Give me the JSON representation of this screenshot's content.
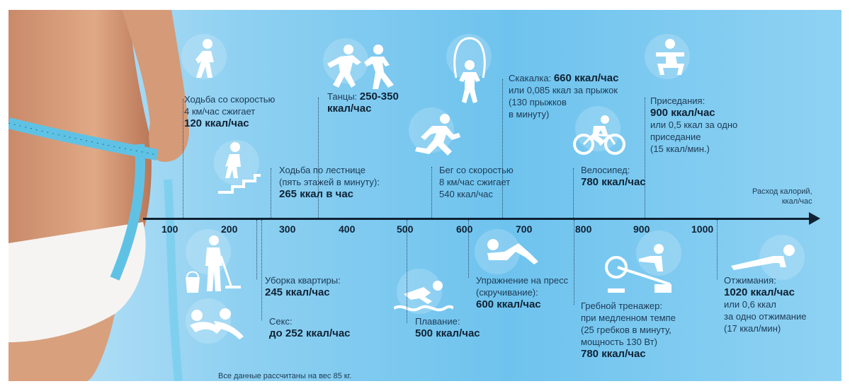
{
  "axis": {
    "label_line1": "Расход калорий,",
    "label_line2": "ккал/час",
    "ticks": [
      "100",
      "200",
      "300",
      "400",
      "500",
      "600",
      "700",
      "800",
      "900",
      "1000"
    ]
  },
  "footnote": "Все данные рассчитаны на вес 85 кг.",
  "activities": {
    "walking": {
      "line1": "Ходьба со скоростью",
      "line2": "4 км/час сжигает",
      "value": "120 ккал/час"
    },
    "dance": {
      "line1": "Танцы: ",
      "value_inline": "250-350",
      "line2": "ккал/час"
    },
    "rope": {
      "line1": "Скакалка: ",
      "value_inline": "660 ккал/час",
      "line2": "или 0,085 ккал за прыжок",
      "line3": "(130 прыжков",
      "line4": "в минуту)"
    },
    "squats": {
      "line1": "Приседания:",
      "value": "900 ккал/час",
      "line2": "или 0,5 ккал за одно",
      "line3": "приседание",
      "line4": "(15 ккал/мин.)"
    },
    "stairs": {
      "line1": "Ходьба по лестнице",
      "line2": "(пять этажей в минуту):",
      "value": "265 ккал в час"
    },
    "running": {
      "line1": "Бег со скоростью",
      "line2": "8 км/час сжигает",
      "line3": "540 ккал/час"
    },
    "bike": {
      "line1": "Велосипед:",
      "value": "780 ккал/час"
    },
    "cleaning": {
      "line1": "Уборка квартиры:",
      "value": "245 ккал/час"
    },
    "sex": {
      "line1": "Секс:",
      "value_prefix": "до ",
      "value": "252 ккал/час"
    },
    "swimming": {
      "line1": "Плавание:",
      "value": "500 ккал/час"
    },
    "press": {
      "line1": "Упражнение на пресс",
      "line2": "(скручивание):",
      "value": "600 ккал/час"
    },
    "rowing": {
      "line1": "Гребной тренажер:",
      "line2": "при медленном темпе",
      "line3": "(25 гребков в минуту,",
      "line4": "мощность 130 Вт)",
      "value": "780 ккал/час"
    },
    "pushups": {
      "line1": "Отжимания:",
      "value": "1020 ккал/час",
      "line2": "или 0,6 ккал",
      "line3": "за одно отжимание",
      "line4": "(17 ккал/мин)"
    }
  }
}
